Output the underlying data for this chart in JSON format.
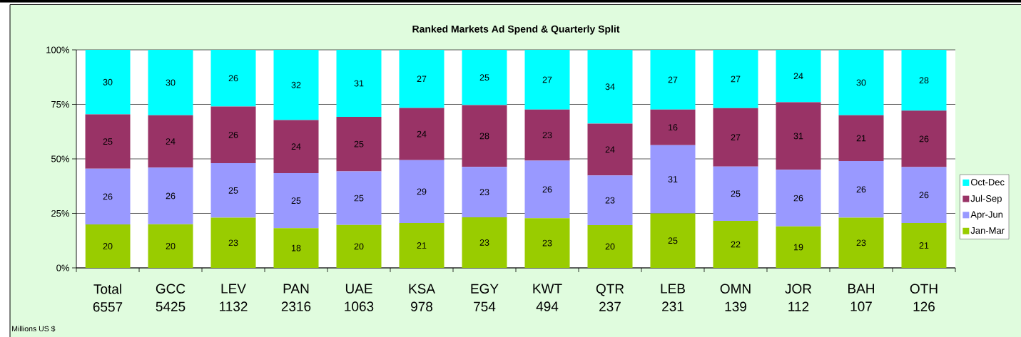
{
  "chart_data": {
    "type": "bar",
    "stacked": true,
    "title": "Ranked  Markets Ad Spend & Quarterly Split",
    "categories": [
      "Total 6557",
      "GCC 5425",
      "LEV 1132",
      "PAN 2316",
      "UAE 1063",
      "KSA 978",
      "EGY 754",
      "KWT 494",
      "QTR 237",
      "LEB 231",
      "OMN 139",
      "JOR 112",
      "BAH 107",
      "OTH 126"
    ],
    "series": [
      {
        "name": "Jan-Mar",
        "color": "#99cc00",
        "values": [
          19.9,
          20,
          23,
          18.2,
          19.7,
          20.6,
          23.2,
          22.8,
          19.6,
          25.0,
          21.6,
          19,
          23,
          20.6
        ],
        "value_labels": [
          "20",
          "20",
          "23",
          "18",
          "20",
          "21",
          "23",
          "23",
          "20",
          "25",
          "22",
          "19",
          "23",
          "21"
        ]
      },
      {
        "name": "Apr-Jun",
        "color": "#9999ff",
        "values": [
          25.6,
          26,
          25,
          25.3,
          24.6,
          28.8,
          23.1,
          26.4,
          22.8,
          31.3,
          24.9,
          26,
          26,
          25.6
        ],
        "value_labels": [
          "26",
          "26",
          "25",
          "25",
          "25",
          "29",
          "23",
          "26",
          "23",
          "31",
          "25",
          "26",
          "26",
          "26"
        ]
      },
      {
        "name": "Jul-Sep",
        "color": "#993366",
        "values": [
          24.9,
          24,
          26,
          24.3,
          25.0,
          24.0,
          28.4,
          23.4,
          23.8,
          16.3,
          26.8,
          31,
          21,
          25.9
        ],
        "value_labels": [
          "25",
          "24",
          "26",
          "24",
          "25",
          "24",
          "28",
          "23",
          "24",
          "16",
          "27",
          "31",
          "21",
          "26"
        ]
      },
      {
        "name": "Oct-Dec",
        "color": "#00ffff",
        "values": [
          29.6,
          30,
          26,
          32.2,
          30.7,
          26.6,
          25.3,
          27.4,
          33.8,
          27.4,
          26.7,
          24,
          30,
          27.9
        ],
        "value_labels": [
          "30",
          "30",
          "26",
          "32",
          "31",
          "27",
          "25",
          "27",
          "34",
          "27",
          "27",
          "24",
          "30",
          "28"
        ]
      }
    ],
    "ylim": [
      0,
      100
    ],
    "yticks": [
      {
        "value": 0,
        "label": "0%"
      },
      {
        "value": 25,
        "label": "25%"
      },
      {
        "value": 50,
        "label": "50%"
      },
      {
        "value": 75,
        "label": "75%"
      },
      {
        "value": 100,
        "label": "100%"
      }
    ],
    "grid": "y",
    "legend": "right",
    "annotations": [
      "Millions US $"
    ]
  }
}
